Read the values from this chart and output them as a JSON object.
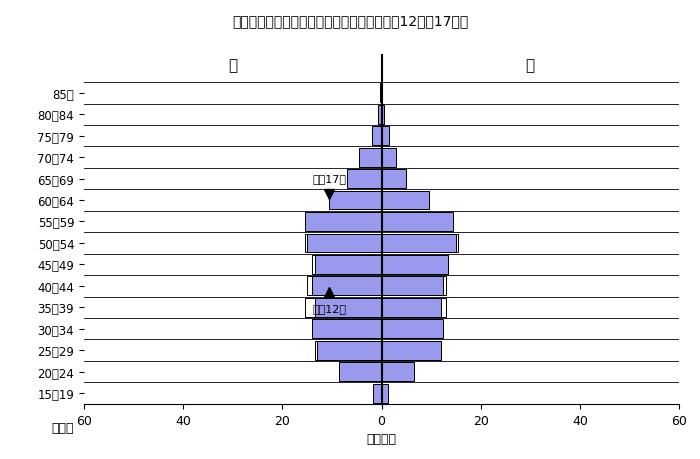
{
  "title": "図１　鳥取県の労働力人口の年齢構成（平成12年，17年）",
  "age_groups": [
    "85～",
    "80～84",
    "75～79",
    "70～74",
    "65～69",
    "60～64",
    "55～59",
    "50～54",
    "45～49",
    "40～44",
    "35～39",
    "30～34",
    "25～29",
    "20～24",
    "15～19"
  ],
  "m17": [
    0.3,
    0.8,
    2.0,
    4.5,
    7.0,
    10.5,
    15.5,
    15.0,
    13.5,
    14.0,
    13.5,
    14.0,
    13.0,
    8.5,
    1.8
  ],
  "f17": [
    0.15,
    0.5,
    1.5,
    3.0,
    5.0,
    9.5,
    14.5,
    15.0,
    13.5,
    12.5,
    12.0,
    12.5,
    12.0,
    6.5,
    1.3
  ],
  "m12": [
    0.2,
    0.6,
    1.5,
    3.5,
    5.5,
    9.5,
    14.0,
    15.5,
    14.0,
    15.0,
    15.5,
    13.0,
    13.5,
    8.0,
    1.2
  ],
  "f12": [
    0.1,
    0.3,
    0.9,
    2.5,
    4.5,
    7.0,
    13.0,
    15.5,
    13.5,
    13.0,
    13.0,
    12.0,
    12.0,
    5.5,
    0.9
  ],
  "xlabel": "（千人）",
  "male_label": "男",
  "female_label": "女",
  "age_label": "（歳）",
  "xlim": 60,
  "bar_color": "#9999ee",
  "edge_color": "#000000",
  "annotation_y2000": "平成12年",
  "annotation_y2005": "平成17年",
  "tick_labels": [
    "60",
    "40",
    "20",
    "0",
    "20",
    "40",
    "60"
  ],
  "tick_vals": [
    -60,
    -40,
    -20,
    0,
    20,
    40,
    60
  ]
}
